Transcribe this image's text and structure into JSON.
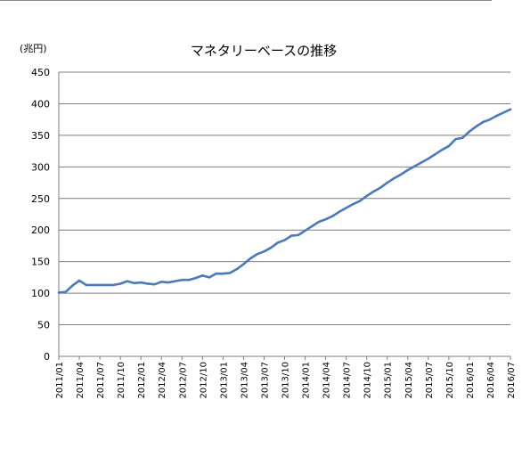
{
  "chart_data": {
    "type": "line",
    "title": "マネタリーベースの推移",
    "unit_label": "(兆円)",
    "xlabel": "",
    "ylabel": "",
    "ylim": [
      0,
      450
    ],
    "yticks": [
      0,
      50,
      100,
      150,
      200,
      250,
      300,
      350,
      400,
      450
    ],
    "grid": true,
    "legend": "none",
    "line_color": "#4a7ab8",
    "x_tick_labels": [
      "2011/01",
      "2011/04",
      "2011/07",
      "2011/10",
      "2012/01",
      "2012/04",
      "2012/07",
      "2012/10",
      "2013/01",
      "2013/04",
      "2013/07",
      "2013/10",
      "2014/01",
      "2014/04",
      "2014/07",
      "2014/10",
      "2015/01",
      "2015/04",
      "2015/07",
      "2015/10",
      "2016/01",
      "2016/04",
      "2016/07"
    ],
    "series": [
      {
        "x": [
          "2011/01",
          "2011/02",
          "2011/03",
          "2011/04",
          "2011/05",
          "2011/06",
          "2011/07",
          "2011/08",
          "2011/09",
          "2011/10",
          "2011/11",
          "2011/12",
          "2012/01",
          "2012/02",
          "2012/03",
          "2012/04",
          "2012/05",
          "2012/06",
          "2012/07",
          "2012/08",
          "2012/09",
          "2012/10",
          "2012/11",
          "2012/12",
          "2013/01",
          "2013/02",
          "2013/03",
          "2013/04",
          "2013/05",
          "2013/06",
          "2013/07",
          "2013/08",
          "2013/09",
          "2013/10",
          "2013/11",
          "2013/12",
          "2014/01",
          "2014/02",
          "2014/03",
          "2014/04",
          "2014/05",
          "2014/06",
          "2014/07",
          "2014/08",
          "2014/09",
          "2014/10",
          "2014/11",
          "2014/12",
          "2015/01",
          "2015/02",
          "2015/03",
          "2015/04",
          "2015/05",
          "2015/06",
          "2015/07",
          "2015/08",
          "2015/09",
          "2015/10",
          "2015/11",
          "2015/12",
          "2016/01",
          "2016/02",
          "2016/03",
          "2016/04",
          "2016/05",
          "2016/06",
          "2016/07"
        ],
        "values": [
          101,
          102,
          112,
          120,
          113,
          113,
          113,
          113,
          113,
          115,
          119,
          116,
          117,
          115,
          114,
          118,
          117,
          119,
          121,
          121,
          124,
          128,
          125,
          131,
          131,
          132,
          138,
          146,
          155,
          162,
          166,
          172,
          180,
          184,
          191,
          192,
          199,
          206,
          213,
          217,
          222,
          229,
          235,
          241,
          246,
          254,
          261,
          267,
          275,
          282,
          288,
          295,
          301,
          307,
          313,
          320,
          327,
          333,
          344,
          346,
          356,
          364,
          371,
          375,
          381,
          386,
          391
        ]
      }
    ]
  }
}
